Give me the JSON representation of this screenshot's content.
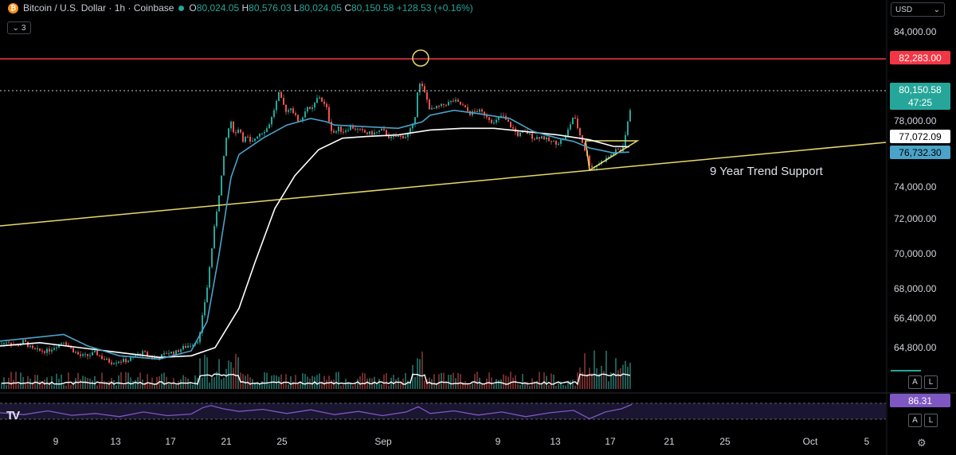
{
  "header": {
    "symbol": "Bitcoin / U.S. Dollar · 1h · Coinbase",
    "open": "80,024.05",
    "high": "80,576.03",
    "low": "80,024.05",
    "close": "80,150.58",
    "change": "+128.53 (+0.16%)",
    "indicator_count": "3",
    "currency": "USD"
  },
  "price_badges": {
    "resistance": "82,283.00",
    "last_price": "80,150.58",
    "countdown": "47:25",
    "ma_white": "77,072.09",
    "ma_blue": "76,732.30",
    "rsi": "86.31"
  },
  "annotation": "9 Year Trend Support",
  "scale_buttons": {
    "auto": "A",
    "log": "L"
  },
  "colors": {
    "up": "#26a69a",
    "down": "#ef5350",
    "resistance": "#f23645",
    "trendline": "#e8d96a",
    "ma_blue": "#4aa3c8",
    "ma_white": "#ffffff",
    "rsi": "#7e57c2"
  },
  "chart_data": {
    "type": "line",
    "title": "Bitcoin / U.S. Dollar · 1h · Coinbase",
    "x_ticks": [
      "9",
      "13",
      "17",
      "21",
      "25",
      "Sep",
      "9",
      "13",
      "17",
      "21",
      "25",
      "Oct",
      "5"
    ],
    "y_ticks": [
      84000,
      82000,
      80000,
      78000,
      76000,
      74000,
      72000,
      70000,
      68000,
      66400,
      64800
    ],
    "y_tick_labels": [
      "84,000.00",
      "78,000.00",
      "74,000.00",
      "72,000.00",
      "70,000.00",
      "68,000.00",
      "66,400.00",
      "64,800.00"
    ],
    "ylim": [
      64000,
      85000
    ],
    "resistance_level": 82283.0,
    "last_price": 80150.58,
    "trendline_label": "9 Year Trend Support",
    "trendline_end_value": 76900,
    "series": [
      {
        "name": "price",
        "points": [
          [
            0,
            65000
          ],
          [
            10,
            65200
          ],
          [
            20,
            64900
          ],
          [
            30,
            65200
          ],
          [
            40,
            64700
          ],
          [
            50,
            64600
          ],
          [
            60,
            64600
          ],
          [
            70,
            64900
          ],
          [
            80,
            65200
          ],
          [
            90,
            64700
          ],
          [
            100,
            64300
          ],
          [
            110,
            64300
          ],
          [
            120,
            64500
          ],
          [
            130,
            64100
          ],
          [
            140,
            63900
          ],
          [
            150,
            64000
          ],
          [
            160,
            64000
          ],
          [
            170,
            64300
          ],
          [
            180,
            64500
          ],
          [
            190,
            64200
          ],
          [
            200,
            64200
          ],
          [
            210,
            64500
          ],
          [
            220,
            64500
          ],
          [
            230,
            64800
          ],
          [
            240,
            65000
          ],
          [
            250,
            65300
          ],
          [
            255,
            67000
          ],
          [
            260,
            68500
          ],
          [
            265,
            70500
          ],
          [
            270,
            72500
          ],
          [
            275,
            74200
          ],
          [
            280,
            76000
          ],
          [
            285,
            78000
          ],
          [
            290,
            78500
          ],
          [
            295,
            77800
          ],
          [
            300,
            78300
          ],
          [
            305,
            77500
          ],
          [
            310,
            77700
          ],
          [
            315,
            77200
          ],
          [
            320,
            77600
          ],
          [
            325,
            77900
          ],
          [
            330,
            78000
          ],
          [
            335,
            78200
          ],
          [
            340,
            78700
          ],
          [
            345,
            79500
          ],
          [
            350,
            80300
          ],
          [
            355,
            79700
          ],
          [
            360,
            79200
          ],
          [
            365,
            79500
          ],
          [
            370,
            79000
          ],
          [
            375,
            78600
          ],
          [
            380,
            78900
          ],
          [
            385,
            79600
          ],
          [
            390,
            79200
          ],
          [
            395,
            79700
          ],
          [
            400,
            80200
          ],
          [
            405,
            79800
          ],
          [
            410,
            79400
          ],
          [
            415,
            78200
          ],
          [
            420,
            77900
          ],
          [
            425,
            78200
          ],
          [
            430,
            78000
          ],
          [
            440,
            78300
          ],
          [
            450,
            78100
          ],
          [
            460,
            77900
          ],
          [
            470,
            77900
          ],
          [
            480,
            78100
          ],
          [
            490,
            77600
          ],
          [
            500,
            77700
          ],
          [
            510,
            77700
          ],
          [
            520,
            78500
          ],
          [
            525,
            81000
          ],
          [
            530,
            80700
          ],
          [
            535,
            80100
          ],
          [
            540,
            79300
          ],
          [
            550,
            79500
          ],
          [
            560,
            79700
          ],
          [
            570,
            79900
          ],
          [
            580,
            79600
          ],
          [
            590,
            79100
          ],
          [
            600,
            79300
          ],
          [
            610,
            79000
          ],
          [
            620,
            78500
          ],
          [
            630,
            79000
          ],
          [
            640,
            78400
          ],
          [
            650,
            77800
          ],
          [
            660,
            78000
          ],
          [
            670,
            77600
          ],
          [
            680,
            77700
          ],
          [
            690,
            77400
          ],
          [
            700,
            77300
          ],
          [
            710,
            77700
          ],
          [
            720,
            79000
          ],
          [
            730,
            77500
          ],
          [
            740,
            76000
          ],
          [
            745,
            75800
          ],
          [
            750,
            76000
          ],
          [
            760,
            76300
          ],
          [
            770,
            76700
          ],
          [
            775,
            76900
          ],
          [
            780,
            76800
          ],
          [
            785,
            77800
          ],
          [
            790,
            79000
          ],
          [
            793,
            80150
          ]
        ]
      },
      {
        "name": "ma_blue",
        "points": [
          [
            0,
            65200
          ],
          [
            40,
            65400
          ],
          [
            80,
            65600
          ],
          [
            110,
            64900
          ],
          [
            150,
            64300
          ],
          [
            200,
            64100
          ],
          [
            240,
            64600
          ],
          [
            260,
            66400
          ],
          [
            275,
            70500
          ],
          [
            290,
            75200
          ],
          [
            300,
            76600
          ],
          [
            330,
            77600
          ],
          [
            360,
            78400
          ],
          [
            390,
            78800
          ],
          [
            410,
            78600
          ],
          [
            420,
            78400
          ],
          [
            460,
            78300
          ],
          [
            500,
            78200
          ],
          [
            530,
            78600
          ],
          [
            540,
            79000
          ],
          [
            570,
            79300
          ],
          [
            600,
            79100
          ],
          [
            640,
            78800
          ],
          [
            670,
            78000
          ],
          [
            700,
            77600
          ],
          [
            720,
            77400
          ],
          [
            740,
            77000
          ],
          [
            770,
            76700
          ],
          [
            790,
            76750
          ]
        ]
      },
      {
        "name": "ma_white",
        "points": [
          [
            0,
            64900
          ],
          [
            50,
            65100
          ],
          [
            100,
            64800
          ],
          [
            150,
            64500
          ],
          [
            200,
            64200
          ],
          [
            240,
            64300
          ],
          [
            270,
            64800
          ],
          [
            300,
            67200
          ],
          [
            320,
            70000
          ],
          [
            345,
            73300
          ],
          [
            370,
            75300
          ],
          [
            400,
            76900
          ],
          [
            430,
            77600
          ],
          [
            460,
            77700
          ],
          [
            500,
            77800
          ],
          [
            540,
            78100
          ],
          [
            580,
            78200
          ],
          [
            620,
            78200
          ],
          [
            660,
            78000
          ],
          [
            700,
            77800
          ],
          [
            740,
            77500
          ],
          [
            770,
            77100
          ],
          [
            790,
            77072
          ]
        ]
      },
      {
        "name": "rsi",
        "points": [
          [
            0,
            55
          ],
          [
            30,
            48
          ],
          [
            60,
            62
          ],
          [
            90,
            45
          ],
          [
            120,
            52
          ],
          [
            150,
            40
          ],
          [
            180,
            58
          ],
          [
            210,
            44
          ],
          [
            240,
            50
          ],
          [
            255,
            75
          ],
          [
            265,
            82
          ],
          [
            280,
            70
          ],
          [
            300,
            60
          ],
          [
            330,
            68
          ],
          [
            360,
            52
          ],
          [
            390,
            66
          ],
          [
            420,
            48
          ],
          [
            450,
            60
          ],
          [
            480,
            44
          ],
          [
            510,
            58
          ],
          [
            525,
            78
          ],
          [
            540,
            52
          ],
          [
            570,
            62
          ],
          [
            600,
            46
          ],
          [
            630,
            58
          ],
          [
            660,
            40
          ],
          [
            690,
            55
          ],
          [
            720,
            64
          ],
          [
            740,
            32
          ],
          [
            760,
            58
          ],
          [
            780,
            70
          ],
          [
            793,
            86.31
          ]
        ]
      }
    ]
  }
}
